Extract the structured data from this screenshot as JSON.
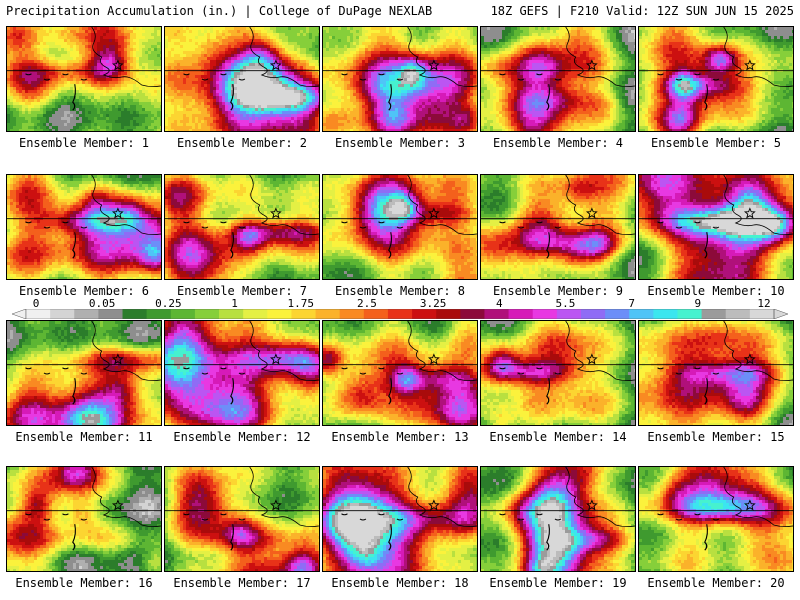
{
  "header": {
    "title": "Precipitation Accumulation (in.) | College of DuPage NEXLAB",
    "valid": "18Z GEFS | F210 Valid: 12Z SUN JUN 15 2025"
  },
  "colorbar": {
    "labels": [
      "0",
      "0.05",
      "0.25",
      "1",
      "1.75",
      "2.5",
      "3.25",
      "4",
      "5.5",
      "7",
      "9",
      "12"
    ],
    "colors": [
      "#f0f0f0",
      "#d4d4d4",
      "#b0b0b0",
      "#8e8e8e",
      "#2b7d2b",
      "#3f9a2f",
      "#5db633",
      "#86cf3a",
      "#b8e040",
      "#e4f044",
      "#fbf23c",
      "#fcd531",
      "#fbb22a",
      "#f98a22",
      "#f4601c",
      "#e83218",
      "#cc1010",
      "#a90b0b",
      "#8c0a3a",
      "#b0107a",
      "#d61ab8",
      "#e838e2",
      "#bb55f2",
      "#8f6cf5",
      "#6c8ef8",
      "#4fc4f7",
      "#3be6ef",
      "#46f2cf",
      "#9b9b9b",
      "#bcbcbc",
      "#d8d8d8"
    ]
  },
  "members": [
    {
      "label": "Ensemble Member: 1"
    },
    {
      "label": "Ensemble Member: 2"
    },
    {
      "label": "Ensemble Member: 3"
    },
    {
      "label": "Ensemble Member: 4"
    },
    {
      "label": "Ensemble Member: 5"
    },
    {
      "label": "Ensemble Member: 6"
    },
    {
      "label": "Ensemble Member: 7"
    },
    {
      "label": "Ensemble Member: 8"
    },
    {
      "label": "Ensemble Member: 9"
    },
    {
      "label": "Ensemble Member: 10"
    },
    {
      "label": "Ensemble Member: 11"
    },
    {
      "label": "Ensemble Member: 12"
    },
    {
      "label": "Ensemble Member: 13"
    },
    {
      "label": "Ensemble Member: 14"
    },
    {
      "label": "Ensemble Member: 15"
    },
    {
      "label": "Ensemble Member: 16"
    },
    {
      "label": "Ensemble Member: 17"
    },
    {
      "label": "Ensemble Member: 18"
    },
    {
      "label": "Ensemble Member: 19"
    },
    {
      "label": "Ensemble Member: 20"
    }
  ]
}
